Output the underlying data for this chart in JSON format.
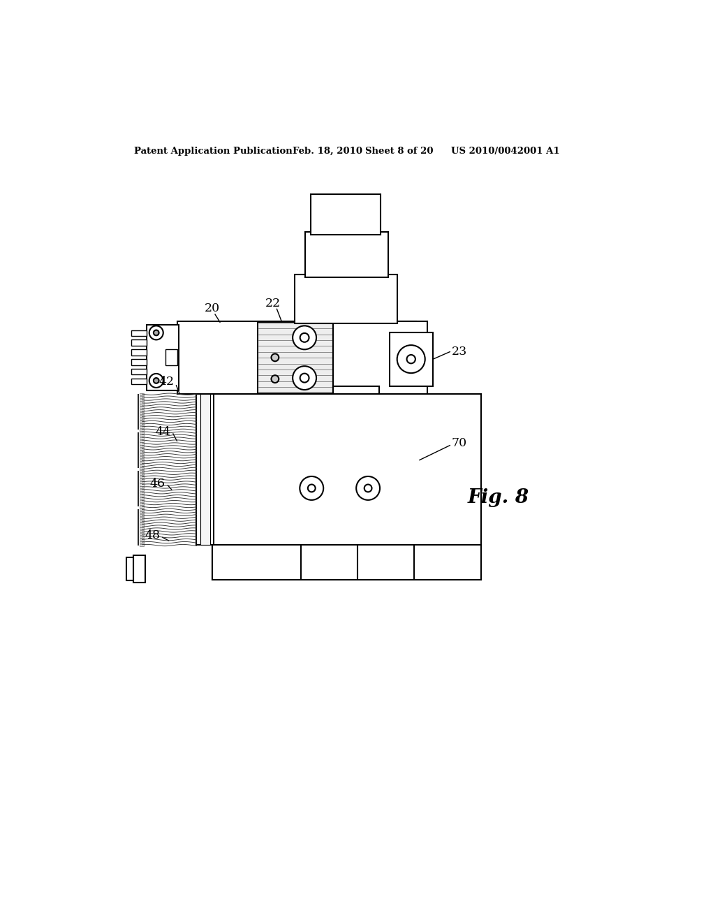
{
  "bg_color": "#ffffff",
  "line_color": "#000000",
  "header_text": "Patent Application Publication",
  "header_date": "Feb. 18, 2010",
  "header_sheet": "Sheet 8 of 20",
  "header_patent": "US 2010/0042001 A1",
  "fig_label": "Fig. 8"
}
